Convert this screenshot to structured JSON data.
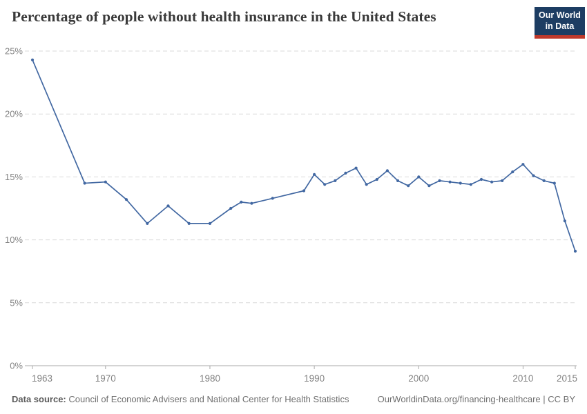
{
  "header": {
    "logo": {
      "line1": "Our World",
      "line2": "in Data"
    }
  },
  "chart_data": {
    "type": "line",
    "title": "Percentage of people without health insurance in the United States",
    "xlabel": "",
    "ylabel": "",
    "grid": "dashed horizontal",
    "legend": "none",
    "ylim": [
      0,
      25
    ],
    "xlim": [
      1963,
      2015
    ],
    "yticks": [
      0,
      5,
      10,
      15,
      20,
      25
    ],
    "ytick_suffix": "%",
    "xticks": [
      1963,
      1970,
      1980,
      1990,
      2000,
      2010,
      2015
    ],
    "series": [
      {
        "name": "United States",
        "x": [
          1963,
          1968,
          1970,
          1972,
          1974,
          1976,
          1978,
          1980,
          1982,
          1983,
          1984,
          1986,
          1989,
          1990,
          1991,
          1992,
          1993,
          1994,
          1995,
          1996,
          1997,
          1998,
          1999,
          2000,
          2001,
          2002,
          2003,
          2004,
          2005,
          2006,
          2007,
          2008,
          2009,
          2010,
          2011,
          2012,
          2013,
          2014,
          2015
        ],
        "values": [
          24.3,
          14.5,
          14.6,
          13.2,
          11.3,
          12.7,
          11.3,
          11.3,
          12.5,
          13.0,
          12.9,
          13.3,
          13.9,
          15.2,
          14.4,
          14.7,
          15.3,
          15.7,
          14.4,
          14.8,
          15.5,
          14.7,
          14.3,
          15.0,
          14.3,
          14.7,
          14.6,
          14.5,
          14.4,
          14.8,
          14.6,
          14.7,
          15.4,
          16.0,
          15.1,
          14.7,
          14.5,
          11.5,
          9.1
        ]
      }
    ]
  },
  "footer": {
    "source_label": "Data source:",
    "source_text": " Council of Economic Advisers and National Center for Health Statistics",
    "attribution": "OurWorldinData.org/financing-healthcare | CC BY"
  },
  "colors": {
    "line": "#4268a2",
    "marker": "#4268a2",
    "grid": "#d9d9d9",
    "axis": "#a8a8a8",
    "tick_label": "#838383",
    "logo_bg": "#1d3d63",
    "logo_red": "#c0392b"
  }
}
